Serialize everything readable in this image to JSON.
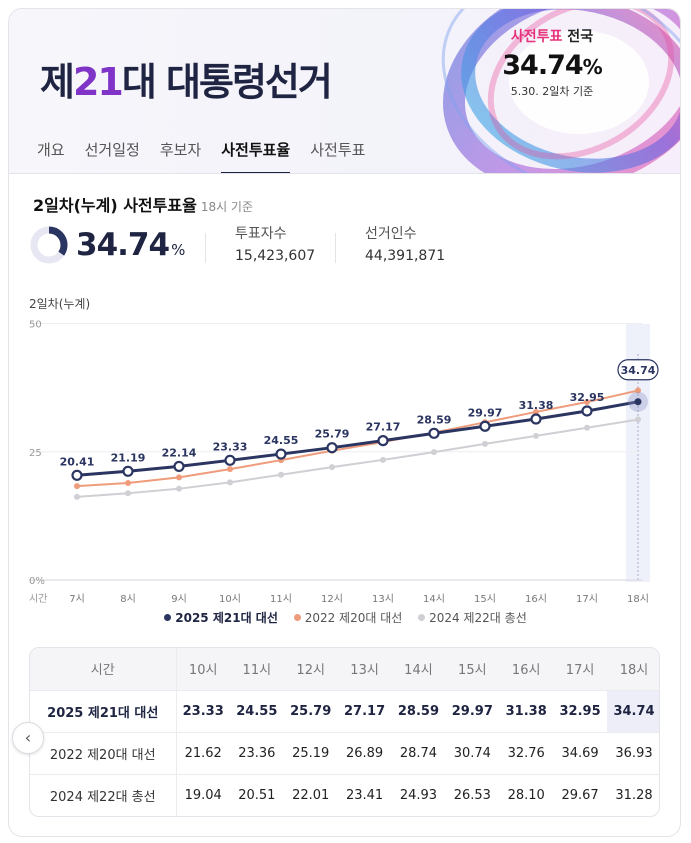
{
  "header": {
    "title_pre": "제",
    "title_num": "21",
    "title_post": "대 대통령선거",
    "nat_label_pre": "사전투표",
    "nat_label_post": " 전국",
    "nat_pct": "34.74",
    "nat_pct_unit": "%",
    "nat_date": "5.30. 2일차 기준"
  },
  "tabs": [
    "개요",
    "선거일정",
    "후보자",
    "사전투표율",
    "사전투표"
  ],
  "active_tab": 3,
  "summary": {
    "title": "2일차(누계) 사전투표율",
    "sub": "18시 기준",
    "pct": "34.74",
    "pct_unit": "%",
    "voters_label": "투표자수",
    "voters_value": "15,423,607",
    "electors_label": "선거인수",
    "electors_value": "44,391,871"
  },
  "colors": {
    "main": "#2b3561",
    "prev2022": "#ee9c7b",
    "prev2024": "#cfcfd4"
  },
  "chart_data": {
    "type": "line",
    "title": "2일차(누계)",
    "xlabel": "시간",
    "ylabel": "",
    "ylim": [
      0,
      50
    ],
    "yticks": [
      "0%",
      "25",
      "50"
    ],
    "categories": [
      "7시",
      "8시",
      "9시",
      "10시",
      "11시",
      "12시",
      "13시",
      "14시",
      "15시",
      "16시",
      "17시",
      "18시"
    ],
    "highlight": "18시",
    "grid": true,
    "legend_placement": "bottom",
    "series": [
      {
        "name": "2025 제21대 대선",
        "values": [
          20.41,
          21.19,
          22.14,
          23.33,
          24.55,
          25.79,
          27.17,
          28.59,
          29.97,
          31.38,
          32.95,
          34.74
        ]
      },
      {
        "name": "2022 제20대 대선",
        "values": [
          18.3,
          18.9,
          20.0,
          21.62,
          23.36,
          25.19,
          26.89,
          28.74,
          30.74,
          32.76,
          34.69,
          36.93
        ]
      },
      {
        "name": "2024 제22대 총선",
        "values": [
          16.2,
          16.9,
          17.8,
          19.04,
          20.51,
          22.01,
          23.41,
          24.93,
          26.53,
          28.1,
          29.67,
          31.28
        ]
      }
    ]
  },
  "legend": [
    "2025 제21대 대선",
    "2022 제20대 대선",
    "2024 제22대 총선"
  ],
  "table": {
    "header_label": "시간",
    "hours": [
      "10시",
      "11시",
      "12시",
      "13시",
      "14시",
      "15시",
      "16시",
      "17시",
      "18시"
    ],
    "rows": [
      {
        "label": "2025 제21대 대선",
        "values": [
          "23.33",
          "24.55",
          "25.79",
          "27.17",
          "28.59",
          "29.97",
          "31.38",
          "32.95",
          "34.74"
        ]
      },
      {
        "label": "2022 제20대 대선",
        "values": [
          "21.62",
          "23.36",
          "25.19",
          "26.89",
          "28.74",
          "30.74",
          "32.76",
          "34.69",
          "36.93"
        ]
      },
      {
        "label": "2024 제22대 총선",
        "values": [
          "19.04",
          "20.51",
          "22.01",
          "23.41",
          "24.93",
          "26.53",
          "28.10",
          "29.67",
          "31.28"
        ]
      }
    ],
    "prev_icon": "chevron-left-icon"
  }
}
